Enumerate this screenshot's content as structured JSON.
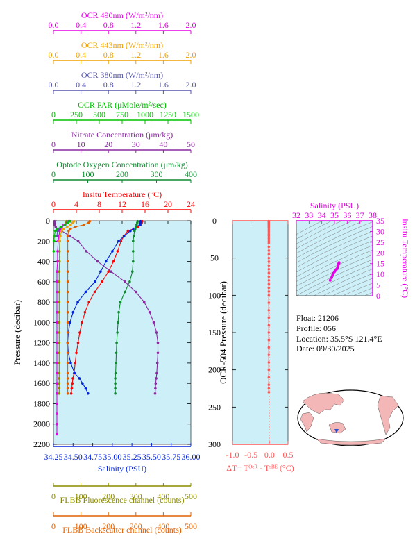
{
  "colors": {
    "panel_bg": "#cdeff7",
    "ocr490": "#e600e6",
    "ocr443": "#f0a000",
    "ocr380": "#5555aa",
    "par": "#00c000",
    "nitrate": "#8a2aa0",
    "oxygen": "#108a30",
    "temperature": "#ff0000",
    "salinity": "#0022dd",
    "fluorescence": "#8a8a00",
    "backscatter": "#e06000",
    "dt": "#ff5555",
    "float_info": "#000000",
    "map_land": "#f4b7b7",
    "map_ocean": "#ffffff",
    "map_marker": "#2a4cd4"
  },
  "top_axes": [
    {
      "key": "ocr490",
      "label": "OCR 490nm (W/m²/nm)",
      "ticks": [
        "0.0",
        "0.4",
        "0.8",
        "1.2",
        "1.6",
        "2.0"
      ],
      "min": 0,
      "max": 2
    },
    {
      "key": "ocr443",
      "label": "OCR 443nm (W/m²/nm)",
      "ticks": [
        "0.0",
        "0.4",
        "0.8",
        "1.2",
        "1.6",
        "2.0"
      ],
      "min": 0,
      "max": 2
    },
    {
      "key": "ocr380",
      "label": "OCR 380nm (W/m²/nm)",
      "ticks": [
        "0.0",
        "0.4",
        "0.8",
        "1.2",
        "1.6",
        "2.0"
      ],
      "min": 0,
      "max": 2
    },
    {
      "key": "par",
      "label": "OCR PAR (μMole/m²/sec)",
      "ticks": [
        "0",
        "250",
        "500",
        "750",
        "1000",
        "1250",
        "1500"
      ],
      "min": 0,
      "max": 1500
    },
    {
      "key": "nitrate",
      "label": "Nitrate Concentration (μm/kg)",
      "ticks": [
        "0",
        "10",
        "20",
        "30",
        "40",
        "50"
      ],
      "min": 0,
      "max": 50
    },
    {
      "key": "oxygen",
      "label": "Optode Oxygen Concentration (μm/kg)",
      "ticks": [
        "0",
        "100",
        "200",
        "300",
        "400"
      ],
      "min": 0,
      "max": 400
    },
    {
      "key": "temperature",
      "label": "Insitu Temperature (°C)",
      "ticks": [
        "0",
        "4",
        "8",
        "12",
        "16",
        "20",
        "24"
      ],
      "min": 0,
      "max": 24
    }
  ],
  "bottom_axes": [
    {
      "key": "salinity",
      "label": "Salinity (PSU)",
      "ticks": [
        "34.25",
        "34.50",
        "34.75",
        "35.00",
        "35.25",
        "35.50",
        "35.75",
        "36.00"
      ],
      "min": 34.25,
      "max": 36
    },
    {
      "key": "fluorescence",
      "label": "FLBB Fluorescence channel (counts)",
      "ticks": [
        "0",
        "100",
        "200",
        "300",
        "400",
        "500"
      ],
      "min": 0,
      "max": 500
    },
    {
      "key": "backscatter",
      "label": "FLBB Backscatter channel (counts)",
      "ticks": [
        "0",
        "100",
        "200",
        "300",
        "400",
        "500"
      ],
      "min": 0,
      "max": 500
    }
  ],
  "main_y": {
    "label": "Pressure (decibar)",
    "ticks": [
      "0",
      "200",
      "400",
      "600",
      "800",
      "1000",
      "1200",
      "1400",
      "1600",
      "1800",
      "2000",
      "2200"
    ],
    "min": 0,
    "max": 2200
  },
  "dt_panel": {
    "y_label": "OCR-504 Pressure (decibar)",
    "y_ticks": [
      "0",
      "50",
      "100",
      "150",
      "200",
      "250",
      "300"
    ],
    "y_min": 0,
    "y_max": 300,
    "x_ticks": [
      "-1.0",
      "-0.5",
      "0.0",
      "0.5"
    ],
    "x_min": -1,
    "x_max": 0.5,
    "x_label": "ΔT= Tᴼᶜᴿ - Tˢᴮᴱ (°C)"
  },
  "ts_panel": {
    "x_label": "Salinity (PSU)",
    "x_ticks": [
      "32",
      "33",
      "34",
      "35",
      "36",
      "37",
      "38"
    ],
    "x_min": 32,
    "x_max": 38,
    "y_label": "Insitu Temperature (°C)",
    "y_ticks": [
      "0",
      "5",
      "10",
      "15",
      "20",
      "25",
      "30",
      "35"
    ],
    "y_min": 0,
    "y_max": 35
  },
  "float_info": {
    "float": "Float:  21206",
    "profile": "Profile:  056",
    "location": "Location:  35.5°S  121.4°E",
    "date": "Date:  09/30/2025"
  },
  "chart_data": [
    {
      "type": "line",
      "title": "",
      "ylabel": "Pressure (decibar)",
      "ylim": [
        0,
        2200
      ],
      "y_reversed": true,
      "series": [
        {
          "name": "Insitu Temperature (°C)",
          "key": "temperature",
          "axis": "temperature",
          "x": [
            15.5,
            15.4,
            15.2,
            14.8,
            14.0,
            13.0,
            12.3,
            11.8,
            11.2,
            10.5,
            9.6,
            8.5,
            7.2,
            6.2,
            5.5,
            5.0,
            4.6,
            4.3,
            4.0,
            3.8,
            3.6,
            3.4,
            3.3,
            3.2,
            3.1
          ],
          "y": [
            5,
            20,
            40,
            60,
            80,
            100,
            150,
            200,
            300,
            400,
            500,
            600,
            700,
            800,
            900,
            1000,
            1100,
            1200,
            1300,
            1400,
            1500,
            1550,
            1600,
            1650,
            1700
          ]
        },
        {
          "name": "Salinity (PSU)",
          "key": "salinity",
          "axis": "salinity",
          "x": [
            35.36,
            35.36,
            35.35,
            35.3,
            35.27,
            35.23,
            35.15,
            35.08,
            35.0,
            34.92,
            34.85,
            34.78,
            34.66,
            34.56,
            34.5,
            34.46,
            34.44,
            34.43,
            34.44,
            34.47,
            34.52,
            34.58,
            34.62,
            34.66,
            34.69
          ],
          "y": [
            5,
            20,
            40,
            60,
            80,
            100,
            150,
            200,
            300,
            400,
            500,
            600,
            700,
            800,
            900,
            1000,
            1100,
            1200,
            1300,
            1400,
            1500,
            1550,
            1600,
            1650,
            1700
          ]
        },
        {
          "name": "Optode Oxygen Concentration (μm/kg)",
          "key": "oxygen",
          "axis": "oxygen",
          "x": [
            245,
            244,
            242,
            240,
            238,
            236,
            234,
            232,
            232,
            232,
            230,
            222,
            208,
            195,
            190,
            188,
            186,
            184,
            183,
            182,
            181,
            180,
            180,
            180,
            180
          ],
          "y": [
            5,
            20,
            40,
            60,
            80,
            100,
            150,
            200,
            300,
            400,
            500,
            600,
            700,
            800,
            900,
            1000,
            1100,
            1200,
            1300,
            1400,
            1500,
            1550,
            1600,
            1650,
            1700
          ]
        },
        {
          "name": "Nitrate Concentration (μm/kg)",
          "key": "nitrate",
          "axis": "nitrate",
          "x": [
            0.4,
            0.4,
            0.5,
            0.8,
            1.5,
            3,
            6,
            9,
            12,
            16,
            21,
            26,
            30,
            33,
            35,
            36.5,
            37.5,
            38,
            38,
            37.8,
            37.6,
            37.4,
            37.2,
            37.1,
            37
          ],
          "y": [
            5,
            20,
            40,
            60,
            80,
            100,
            150,
            200,
            300,
            400,
            500,
            600,
            700,
            800,
            900,
            1000,
            1100,
            1200,
            1300,
            1400,
            1500,
            1550,
            1600,
            1650,
            1700
          ]
        },
        {
          "name": "FLBB Backscatter channel (counts)",
          "key": "backscatter",
          "axis": "backscatter",
          "x": [
            132,
            128,
            110,
            80,
            62,
            55,
            52,
            52,
            52,
            52,
            52,
            52,
            52,
            52,
            52,
            52,
            52,
            52,
            52,
            52,
            52,
            52,
            52,
            52,
            52
          ],
          "y": [
            5,
            20,
            40,
            60,
            80,
            100,
            150,
            200,
            300,
            400,
            500,
            600,
            700,
            800,
            900,
            1000,
            1100,
            1200,
            1300,
            1400,
            1500,
            1550,
            1600,
            1650,
            1700
          ]
        },
        {
          "name": "FLBB Fluorescence channel (counts)",
          "key": "fluorescence",
          "axis": "fluorescence",
          "x": [
            48,
            46,
            40,
            30,
            25,
            24,
            23,
            23,
            22,
            22,
            21,
            21,
            21,
            21,
            21,
            21,
            21,
            21,
            21,
            21,
            21,
            21,
            21,
            21,
            21
          ],
          "y": [
            5,
            20,
            40,
            60,
            80,
            100,
            150,
            200,
            300,
            400,
            500,
            600,
            700,
            800,
            900,
            1000,
            1100,
            1200,
            1300,
            1400,
            1500,
            1550,
            1600,
            1650,
            1700
          ]
        },
        {
          "name": "OCR 490nm (W/m²/nm)",
          "key": "ocr490",
          "axis": "ocr490",
          "x": [
            0.24,
            0.2,
            0.15,
            0.12,
            0.1,
            0.09,
            0.08,
            0.07,
            0.06,
            0.06,
            0.05,
            0.05,
            0.05,
            0.05,
            0.05,
            0.05,
            0.05,
            0.05,
            0.05,
            0.05,
            0.05,
            0.05,
            0.05,
            0.05,
            0.05,
            0.05,
            0.05
          ],
          "y": [
            5,
            20,
            40,
            60,
            80,
            100,
            150,
            200,
            300,
            400,
            500,
            600,
            700,
            800,
            900,
            1000,
            1100,
            1200,
            1300,
            1400,
            1500,
            1600,
            1700,
            1800,
            1900,
            2000,
            2100
          ]
        },
        {
          "name": "OCR 443nm (W/m²/nm)",
          "key": "ocr443",
          "axis": "ocr443",
          "x": [
            0.3,
            0.28,
            0.25,
            0.2,
            0.15,
            0.12,
            0.1,
            0.09
          ],
          "y": [
            5,
            20,
            40,
            60,
            80,
            100,
            150,
            200
          ]
        },
        {
          "name": "OCR 380nm (W/m²/nm)",
          "key": "ocr380",
          "axis": "ocr380",
          "x": [
            0.22,
            0.2,
            0.17,
            0.12,
            0.08,
            0.06,
            0.05
          ],
          "y": [
            5,
            20,
            40,
            60,
            80,
            100,
            150
          ]
        },
        {
          "name": "OCR PAR (μMole/m²/sec)",
          "key": "par",
          "axis": "par",
          "x": [
            180,
            160,
            120,
            80,
            40,
            20,
            10,
            5,
            2
          ],
          "y": [
            5,
            20,
            40,
            60,
            80,
            100,
            150,
            200,
            300
          ]
        }
      ]
    },
    {
      "type": "line",
      "title": "",
      "xlabel": "ΔT= Tᴼᶜᴿ - Tˢᴮᴱ (°C)",
      "ylabel": "OCR-504 Pressure (decibar)",
      "xlim": [
        -1,
        0.5
      ],
      "ylim": [
        0,
        300
      ],
      "series": [
        {
          "name": "ΔT",
          "x": [
            -0.02,
            -0.02,
            -0.02,
            -0.02,
            -0.02,
            -0.02,
            -0.02,
            -0.02,
            -0.02,
            -0.02,
            -0.02,
            -0.02,
            -0.02,
            -0.02,
            -0.02,
            -0.02,
            -0.02,
            -0.02,
            -0.02,
            -0.02,
            -0.02,
            -0.02,
            -0.02,
            -0.02,
            -0.02,
            -0.02,
            -0.02,
            -0.02,
            -0.02,
            -0.02,
            -0.02,
            -0.02,
            -0.02,
            -0.02,
            -0.02,
            -0.02,
            -0.02,
            -0.02,
            -0.02,
            -0.02,
            -0.02,
            -0.02,
            -0.02,
            -0.02,
            -0.02,
            -0.02,
            -0.02,
            -0.02,
            -0.02,
            -0.02
          ],
          "y": [
            0.5,
            1,
            1.5,
            2,
            3,
            4,
            5,
            6,
            7,
            8,
            9,
            10,
            12,
            14,
            16,
            18,
            20,
            22,
            24,
            26,
            28,
            30,
            35,
            40,
            45,
            50,
            55,
            60,
            65,
            70,
            75,
            80,
            85,
            90,
            95,
            100,
            110,
            120,
            130,
            140,
            150,
            160,
            170,
            180,
            190,
            200,
            210,
            220,
            225,
            230
          ]
        }
      ]
    },
    {
      "type": "line",
      "title": "",
      "xlabel": "Salinity (PSU)",
      "ylabel": "Insitu Temperature (°C)",
      "xlim": [
        32,
        38
      ],
      "ylim": [
        0,
        35
      ],
      "series": [
        {
          "name": "T-S",
          "x": [
            35.36,
            35.36,
            35.35,
            35.3,
            35.27,
            35.23,
            35.15,
            35.08,
            35.0,
            34.92,
            34.85,
            34.78,
            34.66
          ],
          "y": [
            15.5,
            15.4,
            15.2,
            14.8,
            14.0,
            13.0,
            12.3,
            11.8,
            11.2,
            10.5,
            9.6,
            8.5,
            7.2
          ]
        }
      ]
    }
  ]
}
